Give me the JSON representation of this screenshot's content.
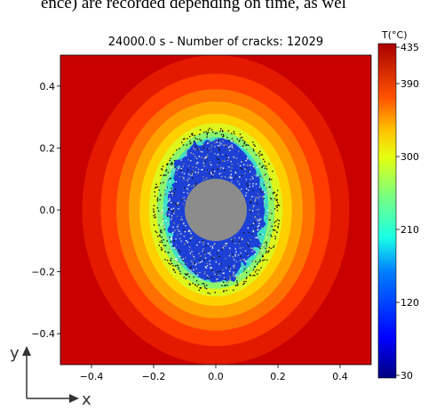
{
  "caption": "ence) are recorded depending on time, as wel",
  "chart_data": {
    "type": "heatmap",
    "title": "24000.0 s - Number of cracks: 12029",
    "x_ticks": [
      -0.4,
      -0.2,
      0.0,
      0.2,
      0.4
    ],
    "y_ticks": [
      -0.4,
      -0.2,
      0.0,
      0.2,
      0.4
    ],
    "x_tick_labels": [
      "−0.4",
      "−0.2",
      "0.0",
      "0.2",
      "0.4"
    ],
    "y_tick_labels": [
      "−0.4",
      "−0.2",
      "0.0",
      "0.2",
      "0.4"
    ],
    "xlim": [
      -0.5,
      0.5
    ],
    "ylim": [
      -0.5,
      0.5
    ],
    "colorbar": {
      "label": "T(°C)",
      "min": 30,
      "max": 435,
      "ticks": [
        30,
        120,
        210,
        300,
        390,
        435
      ],
      "tick_labels": [
        "30",
        "120",
        "210",
        "300",
        "390",
        "435"
      ]
    },
    "temperature_contours": [
      {
        "a": 0.52,
        "b": 0.58,
        "color": "#c90000"
      },
      {
        "a": 0.43,
        "b": 0.5,
        "color": "#e41a00"
      },
      {
        "a": 0.37,
        "b": 0.44,
        "color": "#ff3c00"
      },
      {
        "a": 0.32,
        "b": 0.39,
        "color": "#ff6e00"
      },
      {
        "a": 0.28,
        "b": 0.35,
        "color": "#ffa000"
      },
      {
        "a": 0.245,
        "b": 0.31,
        "color": "#ffd000"
      },
      {
        "a": 0.215,
        "b": 0.28,
        "color": "#dff51c"
      },
      {
        "a": 0.19,
        "b": 0.255,
        "color": "#8cf56a"
      },
      {
        "a": 0.17,
        "b": 0.235,
        "color": "#3ce0c8"
      }
    ],
    "cracked_zone": {
      "a": 0.155,
      "b": 0.23,
      "color": "#1b3fd6"
    },
    "inner_hole": {
      "radius": 0.1,
      "color": "#8c8c8c"
    },
    "axes_indicator": {
      "x": "x",
      "y": "y"
    }
  }
}
